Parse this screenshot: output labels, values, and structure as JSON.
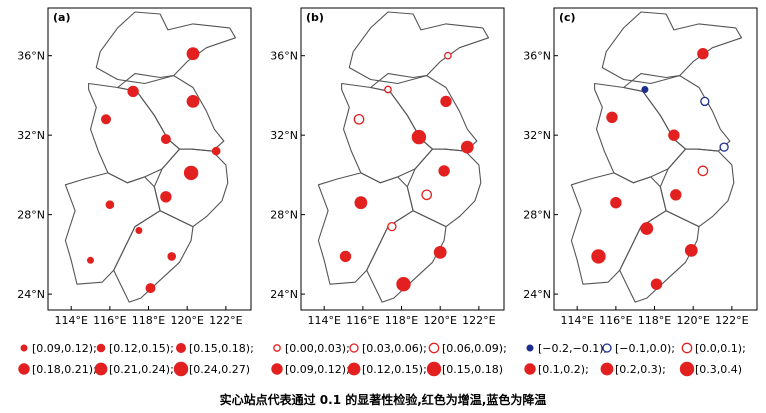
{
  "caption": "实心站点代表通过 0.1 的显著性检验,红色为增温,蓝色为降温",
  "colors": {
    "red": "#e32020",
    "blue": "#1c2f8f",
    "frame": "#000000",
    "outline": "#555555"
  },
  "x_ticks": [
    "114°E",
    "116°E",
    "118°E",
    "120°E",
    "122°E"
  ],
  "y_ticks": [
    "36°N",
    "32°N",
    "28°N",
    "24°N"
  ],
  "panels": [
    {
      "label": "(a)",
      "legend": [
        {
          "text": "[0.09,0.12);",
          "color": "red",
          "filled": true
        },
        {
          "text": "[0.12,0.15);",
          "color": "red",
          "filled": true
        },
        {
          "text": "[0.15,0.18);",
          "color": "red",
          "filled": true
        },
        {
          "text": "[0.18,0.21);",
          "color": "red",
          "filled": true
        },
        {
          "text": "[0.21,0.24);",
          "color": "red",
          "filled": true
        },
        {
          "text": "[0.24,0.27)",
          "color": "red",
          "filled": true
        }
      ],
      "stations": [
        {
          "lon": 120.3,
          "lat": 36.1,
          "size": 5,
          "color": "red",
          "filled": true
        },
        {
          "lon": 117.2,
          "lat": 34.2,
          "size": 4,
          "color": "red",
          "filled": true
        },
        {
          "lon": 120.3,
          "lat": 33.7,
          "size": 5,
          "color": "red",
          "filled": true
        },
        {
          "lon": 115.8,
          "lat": 32.8,
          "size": 3,
          "color": "red",
          "filled": true
        },
        {
          "lon": 118.9,
          "lat": 31.8,
          "size": 3,
          "color": "red",
          "filled": true
        },
        {
          "lon": 121.5,
          "lat": 31.2,
          "size": 2,
          "color": "red",
          "filled": true
        },
        {
          "lon": 120.2,
          "lat": 30.1,
          "size": 6,
          "color": "red",
          "filled": true
        },
        {
          "lon": 118.9,
          "lat": 28.9,
          "size": 4,
          "color": "red",
          "filled": true
        },
        {
          "lon": 116.0,
          "lat": 28.5,
          "size": 2,
          "color": "red",
          "filled": true
        },
        {
          "lon": 117.5,
          "lat": 27.2,
          "size": 1,
          "color": "red",
          "filled": true
        },
        {
          "lon": 119.2,
          "lat": 25.9,
          "size": 2,
          "color": "red",
          "filled": true
        },
        {
          "lon": 115.0,
          "lat": 25.7,
          "size": 1,
          "color": "red",
          "filled": true
        },
        {
          "lon": 118.1,
          "lat": 24.3,
          "size": 3,
          "color": "red",
          "filled": true
        }
      ]
    },
    {
      "label": "(b)",
      "legend": [
        {
          "text": "[0.00,0.03);",
          "color": "red",
          "filled": false
        },
        {
          "text": "[0.03,0.06);",
          "color": "red",
          "filled": false
        },
        {
          "text": "[0.06,0.09);",
          "color": "red",
          "filled": false
        },
        {
          "text": "[0.09,0.12);",
          "color": "red",
          "filled": true
        },
        {
          "text": "[0.12,0.15);",
          "color": "red",
          "filled": true
        },
        {
          "text": "[0.15,0.18)",
          "color": "red",
          "filled": true
        }
      ],
      "stations": [
        {
          "lon": 120.4,
          "lat": 36.0,
          "size": 1,
          "color": "red",
          "filled": false
        },
        {
          "lon": 117.3,
          "lat": 34.3,
          "size": 1,
          "color": "red",
          "filled": false
        },
        {
          "lon": 120.3,
          "lat": 33.7,
          "size": 4,
          "color": "red",
          "filled": true
        },
        {
          "lon": 115.8,
          "lat": 32.8,
          "size": 3,
          "color": "red",
          "filled": false
        },
        {
          "lon": 118.9,
          "lat": 31.9,
          "size": 6,
          "color": "red",
          "filled": true
        },
        {
          "lon": 121.4,
          "lat": 31.4,
          "size": 5,
          "color": "red",
          "filled": true
        },
        {
          "lon": 120.2,
          "lat": 30.2,
          "size": 4,
          "color": "red",
          "filled": true
        },
        {
          "lon": 119.3,
          "lat": 29.0,
          "size": 3,
          "color": "red",
          "filled": false
        },
        {
          "lon": 115.9,
          "lat": 28.6,
          "size": 5,
          "color": "red",
          "filled": true
        },
        {
          "lon": 117.5,
          "lat": 27.4,
          "size": 2,
          "color": "red",
          "filled": false
        },
        {
          "lon": 120.0,
          "lat": 26.1,
          "size": 5,
          "color": "red",
          "filled": true
        },
        {
          "lon": 115.1,
          "lat": 25.9,
          "size": 4,
          "color": "red",
          "filled": true
        },
        {
          "lon": 118.1,
          "lat": 24.5,
          "size": 6,
          "color": "red",
          "filled": true
        }
      ]
    },
    {
      "label": "(c)",
      "legend": [
        {
          "text": "[−0.2,−0.1);",
          "color": "blue",
          "filled": true
        },
        {
          "text": "[−0.1,0.0);",
          "color": "blue",
          "filled": false
        },
        {
          "text": "[0.0,0.1);",
          "color": "red",
          "filled": false
        },
        {
          "text": "[0.1,0.2);",
          "color": "red",
          "filled": true
        },
        {
          "text": "[0.2,0.3);",
          "color": "red",
          "filled": true
        },
        {
          "text": "[0.3,0.4)",
          "color": "red",
          "filled": true
        }
      ],
      "stations": [
        {
          "lon": 120.5,
          "lat": 36.1,
          "size": 4,
          "color": "red",
          "filled": true
        },
        {
          "lon": 117.5,
          "lat": 34.3,
          "size": 1,
          "color": "blue",
          "filled": true
        },
        {
          "lon": 120.6,
          "lat": 33.7,
          "size": 2,
          "color": "blue",
          "filled": false
        },
        {
          "lon": 115.8,
          "lat": 32.9,
          "size": 4,
          "color": "red",
          "filled": true
        },
        {
          "lon": 119.0,
          "lat": 32.0,
          "size": 4,
          "color": "red",
          "filled": true
        },
        {
          "lon": 121.6,
          "lat": 31.4,
          "size": 2,
          "color": "blue",
          "filled": false
        },
        {
          "lon": 120.5,
          "lat": 30.2,
          "size": 3,
          "color": "red",
          "filled": false
        },
        {
          "lon": 119.1,
          "lat": 29.0,
          "size": 4,
          "color": "red",
          "filled": true
        },
        {
          "lon": 116.0,
          "lat": 28.6,
          "size": 4,
          "color": "red",
          "filled": true
        },
        {
          "lon": 117.6,
          "lat": 27.3,
          "size": 5,
          "color": "red",
          "filled": true
        },
        {
          "lon": 119.9,
          "lat": 26.2,
          "size": 5,
          "color": "red",
          "filled": true
        },
        {
          "lon": 115.1,
          "lat": 25.9,
          "size": 6,
          "color": "red",
          "filled": true
        },
        {
          "lon": 118.1,
          "lat": 24.5,
          "size": 4,
          "color": "red",
          "filled": true
        }
      ]
    }
  ]
}
